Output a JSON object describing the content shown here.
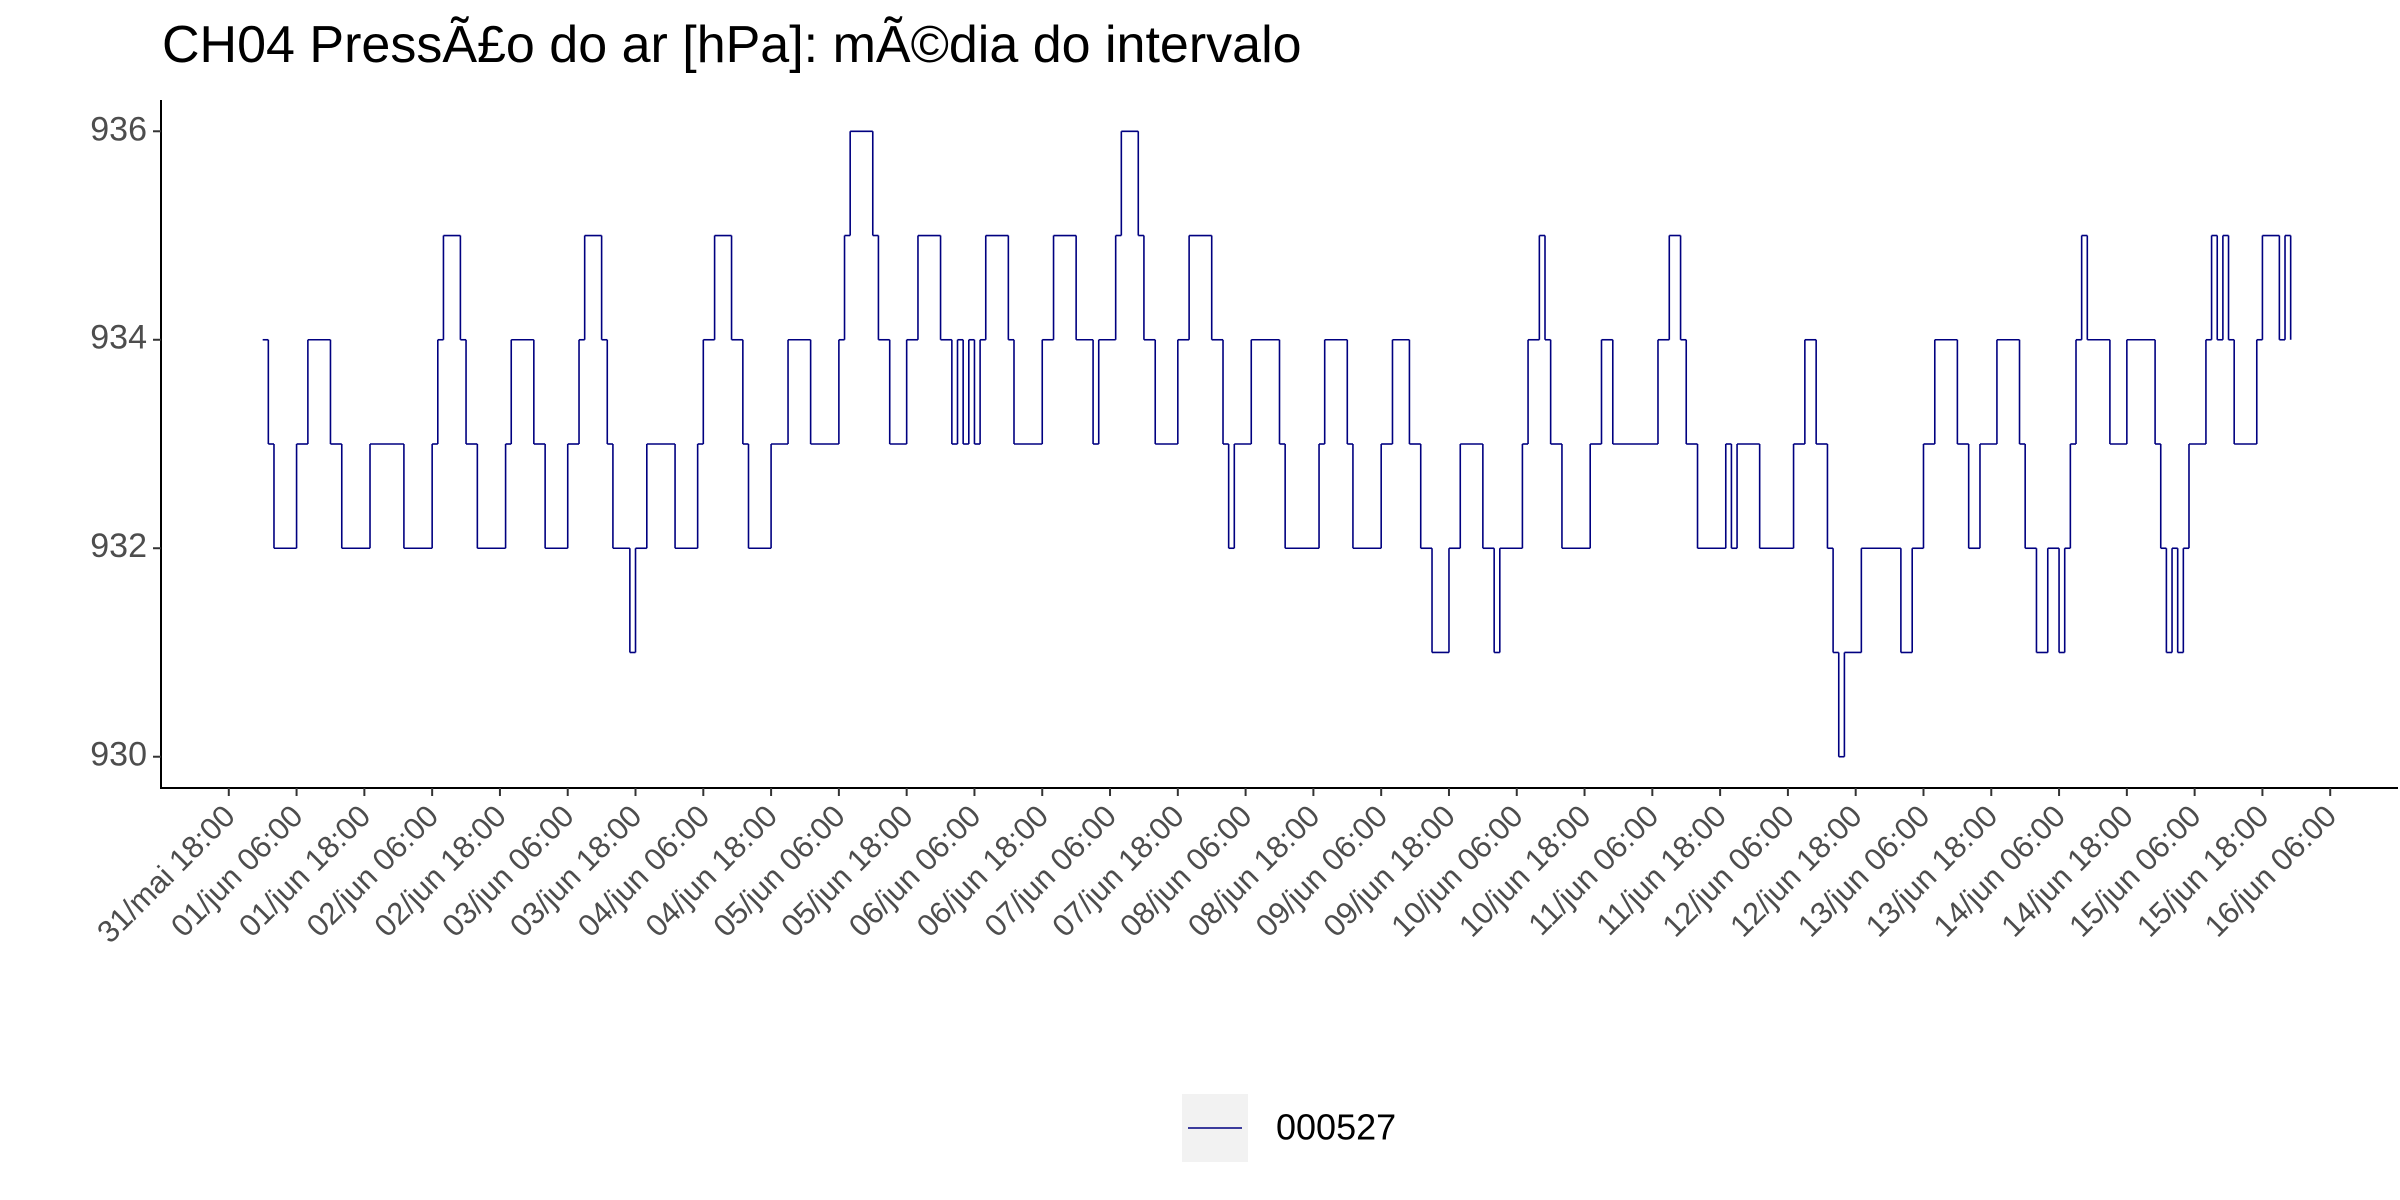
{
  "chart_data": {
    "type": "line",
    "drawstyle": "steps-post",
    "title": "CH04 PressÃ£o do ar [hPa]: mÃ©dia do intervalo",
    "series": [
      {
        "name": "000527",
        "color": "#000080",
        "x": [
          "01/jun 00:00",
          "01/jun 01:00",
          "01/jun 02:00",
          "01/jun 06:00",
          "01/jun 08:00",
          "01/jun 12:00",
          "01/jun 14:00",
          "01/jun 19:00",
          "02/jun 01:00",
          "02/jun 06:00",
          "02/jun 07:00",
          "02/jun 08:00",
          "02/jun 11:00",
          "02/jun 12:00",
          "02/jun 14:00",
          "02/jun 19:00",
          "02/jun 20:00",
          "03/jun 00:00",
          "03/jun 02:00",
          "03/jun 06:00",
          "03/jun 08:00",
          "03/jun 09:00",
          "03/jun 12:00",
          "03/jun 13:00",
          "03/jun 14:00",
          "03/jun 17:00",
          "03/jun 18:00",
          "03/jun 20:00",
          "04/jun 01:00",
          "04/jun 05:00",
          "04/jun 06:00",
          "04/jun 08:00",
          "04/jun 11:00",
          "04/jun 13:00",
          "04/jun 14:00",
          "04/jun 18:00",
          "04/jun 21:00",
          "05/jun 01:00",
          "05/jun 06:00",
          "05/jun 07:00",
          "05/jun 08:00",
          "05/jun 12:00",
          "05/jun 13:00",
          "05/jun 15:00",
          "05/jun 18:00",
          "05/jun 20:00",
          "06/jun 00:00",
          "06/jun 02:00",
          "06/jun 03:00",
          "06/jun 04:00",
          "06/jun 05:00",
          "06/jun 06:00",
          "06/jun 07:00",
          "06/jun 08:00",
          "06/jun 12:00",
          "06/jun 13:00",
          "06/jun 18:00",
          "06/jun 20:00",
          "07/jun 00:00",
          "07/jun 03:00",
          "07/jun 04:00",
          "07/jun 07:00",
          "07/jun 08:00",
          "07/jun 11:00",
          "07/jun 12:00",
          "07/jun 14:00",
          "07/jun 18:00",
          "07/jun 20:00",
          "08/jun 00:00",
          "08/jun 02:00",
          "08/jun 03:00",
          "08/jun 04:00",
          "08/jun 07:00",
          "08/jun 12:00",
          "08/jun 13:00",
          "08/jun 19:00",
          "08/jun 20:00",
          "09/jun 00:00",
          "09/jun 01:00",
          "09/jun 06:00",
          "09/jun 08:00",
          "09/jun 11:00",
          "09/jun 13:00",
          "09/jun 15:00",
          "09/jun 18:00",
          "09/jun 20:00",
          "10/jun 00:00",
          "10/jun 02:00",
          "10/jun 03:00",
          "10/jun 07:00",
          "10/jun 08:00",
          "10/jun 10:00",
          "10/jun 11:00",
          "10/jun 12:00",
          "10/jun 14:00",
          "10/jun 19:00",
          "10/jun 21:00",
          "10/jun 23:00",
          "11/jun 07:00",
          "11/jun 09:00",
          "11/jun 11:00",
          "11/jun 12:00",
          "11/jun 14:00",
          "11/jun 19:00",
          "11/jun 20:00",
          "11/jun 21:00",
          "12/jun 01:00",
          "12/jun 07:00",
          "12/jun 09:00",
          "12/jun 11:00",
          "12/jun 13:00",
          "12/jun 14:00",
          "12/jun 15:00",
          "12/jun 16:00",
          "12/jun 19:00",
          "13/jun 02:00",
          "13/jun 04:00",
          "13/jun 06:00",
          "13/jun 08:00",
          "13/jun 12:00",
          "13/jun 14:00",
          "13/jun 16:00",
          "13/jun 19:00",
          "13/jun 23:00",
          "14/jun 00:00",
          "14/jun 02:00",
          "14/jun 04:00",
          "14/jun 06:00",
          "14/jun 07:00",
          "14/jun 08:00",
          "14/jun 09:00",
          "14/jun 10:00",
          "14/jun 11:00",
          "14/jun 15:00",
          "14/jun 18:00",
          "14/jun 23:00",
          "15/jun 00:00",
          "15/jun 01:00",
          "15/jun 02:00",
          "15/jun 03:00",
          "15/jun 04:00",
          "15/jun 05:00",
          "15/jun 08:00",
          "15/jun 09:00",
          "15/jun 10:00",
          "15/jun 11:00",
          "15/jun 12:00",
          "15/jun 13:00",
          "15/jun 17:00",
          "15/jun 18:00",
          "15/jun 21:00",
          "15/jun 22:00",
          "15/jun 23:00"
        ],
        "values": [
          934,
          933,
          932,
          933,
          934,
          933,
          932,
          933,
          932,
          933,
          934,
          935,
          934,
          933,
          932,
          933,
          934,
          933,
          932,
          933,
          934,
          935,
          934,
          933,
          932,
          931,
          932,
          933,
          932,
          933,
          934,
          935,
          934,
          933,
          932,
          933,
          934,
          933,
          934,
          935,
          936,
          935,
          934,
          933,
          934,
          935,
          934,
          933,
          934,
          933,
          934,
          933,
          934,
          935,
          934,
          933,
          934,
          935,
          934,
          933,
          934,
          935,
          936,
          935,
          934,
          933,
          934,
          935,
          934,
          933,
          932,
          933,
          934,
          933,
          932,
          933,
          934,
          933,
          932,
          933,
          934,
          933,
          932,
          931,
          932,
          933,
          932,
          931,
          932,
          933,
          934,
          935,
          934,
          933,
          932,
          933,
          934,
          933,
          934,
          935,
          934,
          933,
          932,
          933,
          932,
          933,
          932,
          933,
          934,
          933,
          932,
          931,
          930,
          931,
          932,
          931,
          932,
          933,
          934,
          933,
          932,
          933,
          934,
          933,
          932,
          931,
          932,
          931,
          932,
          933,
          934,
          935,
          934,
          933,
          934,
          933,
          932,
          931,
          932,
          931,
          932,
          933,
          934,
          935,
          934,
          935,
          934,
          933,
          934,
          935,
          934,
          935,
          934
        ]
      }
    ],
    "xlim": [
      "31/mai 06:00",
      "16/jun 18:00"
    ],
    "xticks": [
      "31/mai 18:00",
      "01/jun 06:00",
      "01/jun 18:00",
      "02/jun 06:00",
      "02/jun 18:00",
      "03/jun 06:00",
      "03/jun 18:00",
      "04/jun 06:00",
      "04/jun 18:00",
      "05/jun 06:00",
      "05/jun 18:00",
      "06/jun 06:00",
      "06/jun 18:00",
      "07/jun 06:00",
      "07/jun 18:00",
      "08/jun 06:00",
      "08/jun 18:00",
      "09/jun 06:00",
      "09/jun 18:00",
      "10/jun 06:00",
      "10/jun 18:00",
      "11/jun 06:00",
      "11/jun 18:00",
      "12/jun 06:00",
      "12/jun 18:00",
      "13/jun 06:00",
      "13/jun 18:00",
      "14/jun 06:00",
      "14/jun 18:00",
      "15/jun 06:00",
      "15/jun 18:00",
      "16/jun 06:00"
    ],
    "ylim": [
      929.7,
      936.3
    ],
    "yticks": [
      930,
      932,
      934,
      936
    ],
    "grid": false,
    "legend": "bottom"
  }
}
